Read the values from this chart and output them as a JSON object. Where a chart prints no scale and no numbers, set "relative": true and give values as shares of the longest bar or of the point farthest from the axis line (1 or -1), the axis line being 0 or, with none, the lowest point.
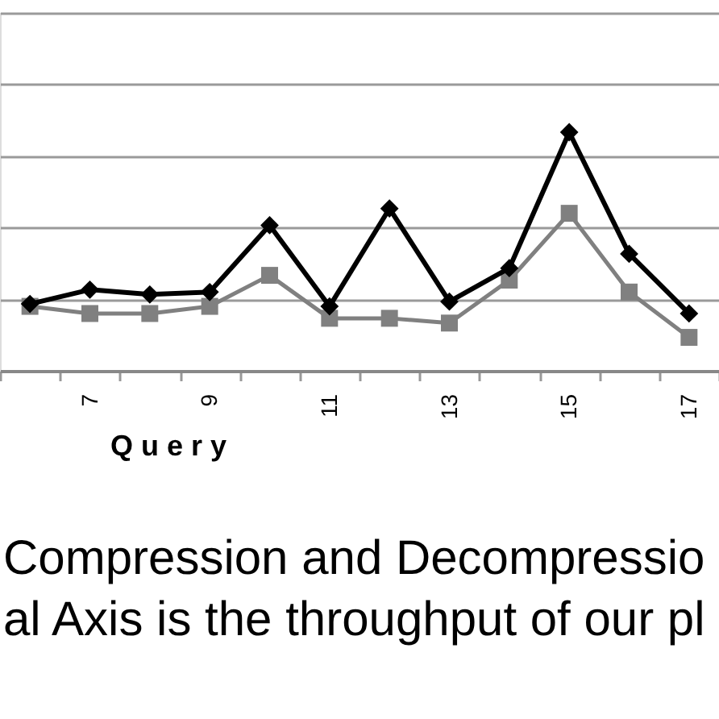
{
  "chart_data": {
    "type": "line",
    "relative": true,
    "xlabel": "Q u e r y",
    "categories": [
      null,
      "7",
      null,
      "9",
      null,
      "11",
      null,
      "13",
      null,
      "15",
      null,
      "17"
    ],
    "series": [
      {
        "color": "#808080",
        "marker": "square",
        "values": [
          0.27,
          0.24,
          0.24,
          0.27,
          0.4,
          0.22,
          0.22,
          0.2,
          0.38,
          0.66,
          0.33,
          0.14
        ]
      },
      {
        "color": "#000000",
        "marker": "diamond",
        "values": [
          0.28,
          0.34,
          0.32,
          0.33,
          0.61,
          0.27,
          0.68,
          0.29,
          0.43,
          1,
          0.49,
          0.24
        ]
      }
    ],
    "grid": "y",
    "line_style": "solid",
    "annotations": [
      "Compression and Decompressio",
      "al Axis is the throughput of our pl"
    ]
  }
}
